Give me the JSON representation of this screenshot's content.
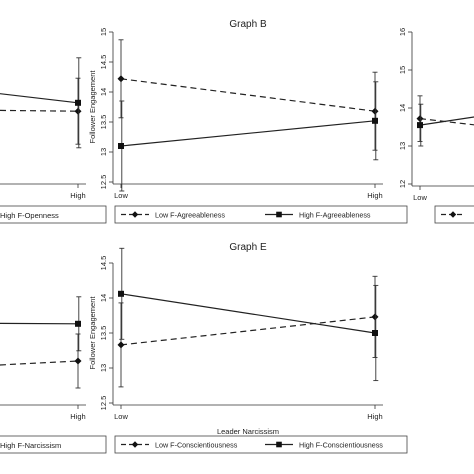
{
  "chart_data": [
    {
      "id": "A",
      "type": "line",
      "title": "",
      "xlabel": "",
      "ylabel": "",
      "categories": [
        "Low",
        "High"
      ],
      "visible_tick_labels": [
        "High"
      ],
      "ylim": [
        12.5,
        15.0
      ],
      "series": [
        {
          "name": "",
          "style": "dashed",
          "marker": "diamond",
          "values": [
            13.7,
            13.68
          ],
          "err": [
            0.5,
            0.55
          ]
        },
        {
          "name": "High F-Openness",
          "style": "solid",
          "marker": "square",
          "values": [
            14.05,
            13.82
          ],
          "err": [
            0.5,
            0.75
          ]
        }
      ],
      "legend_text": "High F-Openness"
    },
    {
      "id": "B",
      "type": "line",
      "title": "Graph B",
      "xlabel": "Leader Narcissism",
      "ylabel": "Follower Engagement",
      "categories": [
        "Low",
        "High"
      ],
      "ylim": [
        12.5,
        15.0
      ],
      "yticks": [
        12.5,
        13,
        13.5,
        14,
        14.5,
        15
      ],
      "series": [
        {
          "name": "Low F-Agreeableness",
          "style": "dashed",
          "marker": "diamond",
          "values": [
            14.22,
            13.68
          ],
          "err": [
            0.65,
            0.65
          ]
        },
        {
          "name": "High F-Agreeableness",
          "style": "solid",
          "marker": "square",
          "values": [
            13.1,
            13.52
          ],
          "err": [
            0.75,
            0.65
          ]
        }
      ]
    },
    {
      "id": "C",
      "type": "line",
      "title": "",
      "xlabel": "",
      "ylabel": "",
      "categories": [
        "Low",
        "High"
      ],
      "visible_tick_labels": [
        "Low"
      ],
      "ylim": [
        12,
        16
      ],
      "yticks": [
        12,
        13,
        14,
        15,
        16
      ],
      "series": [
        {
          "name": "",
          "style": "dashed",
          "marker": "diamond",
          "values": [
            13.72,
            13.3
          ],
          "err": [
            0.6,
            0.6
          ]
        },
        {
          "name": "",
          "style": "solid",
          "marker": "square",
          "values": [
            13.55,
            14.1
          ],
          "err": [
            0.55,
            0.6
          ]
        }
      ]
    },
    {
      "id": "D",
      "type": "line",
      "title": "",
      "xlabel": "",
      "ylabel": "",
      "categories": [
        "Low",
        "High"
      ],
      "visible_tick_labels": [
        "High"
      ],
      "ylim": [
        12.5,
        15.0
      ],
      "series": [
        {
          "name": "",
          "style": "dashed",
          "marker": "diamond",
          "values": [
            13.1,
            13.2
          ],
          "err": [
            0.55,
            0.45
          ]
        },
        {
          "name": "High F-Narcissism",
          "style": "solid",
          "marker": "square",
          "values": [
            13.83,
            13.82
          ],
          "err": [
            0.5,
            0.45
          ]
        }
      ],
      "legend_text": "High F-Narcissism"
    },
    {
      "id": "E",
      "type": "line",
      "title": "Graph E",
      "xlabel": "Leader Narcissism",
      "ylabel": "Follower Engagement",
      "categories": [
        "Low",
        "High"
      ],
      "ylim": [
        12.5,
        14.5
      ],
      "yticks": [
        12.5,
        13,
        13.5,
        14,
        14.5
      ],
      "series": [
        {
          "name": "Low F-Conscientiousness",
          "style": "dashed",
          "marker": "diamond",
          "values": [
            13.33,
            13.73
          ],
          "err": [
            0.6,
            0.58
          ]
        },
        {
          "name": "High F-Conscientiousness",
          "style": "solid",
          "marker": "square",
          "values": [
            14.06,
            13.5
          ],
          "err": [
            0.65,
            0.68
          ]
        }
      ]
    }
  ]
}
